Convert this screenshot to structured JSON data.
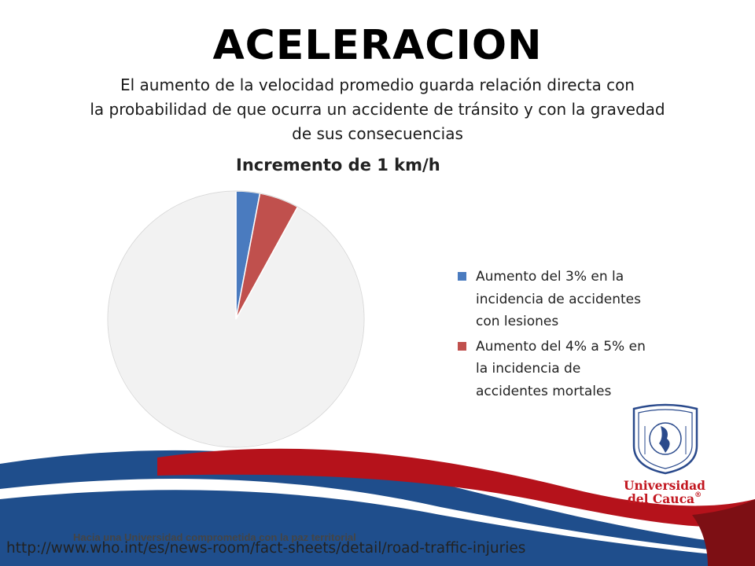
{
  "slide": {
    "title": "ACELERACION",
    "subtitle_lines": [
      "El aumento de la velocidad promedio guarda relación directa con",
      "la probabilidad de que ocurra un accidente de tránsito y con la gravedad",
      "de sus consecuencias"
    ],
    "slogan": "Hacia una Universidad comprometida con la paz territorial",
    "source_url": "http://www.who.int/es/news-room/fact-sheets/detail/road-traffic-injuries"
  },
  "logo": {
    "name_line1": "Universidad",
    "name_line2": "del Cauca",
    "mark": "®",
    "icon": "university-seal-icon",
    "colors": {
      "primary": "#2a4a8c",
      "text": "#c2161f"
    }
  },
  "chart_data": {
    "type": "pie",
    "title": "Incremento de 1 km/h",
    "legend_position": "right",
    "series": [
      {
        "name": "Aumento del 3% en la incidencia de accidentes con lesiones",
        "value": 3,
        "color": "#4a7bbf",
        "show_in_legend": true
      },
      {
        "name": "Aumento del 4% a 5% en la incidencia de accidentes mortales",
        "value": 5,
        "color": "#c0504d",
        "show_in_legend": true
      },
      {
        "name": "",
        "value": 92,
        "color": "#f2f2f2",
        "show_in_legend": false
      }
    ]
  },
  "colors": {
    "wave_blue": "#1f4e8c",
    "wave_red": "#b5121b",
    "wave_dark_red": "#7d0f14"
  }
}
